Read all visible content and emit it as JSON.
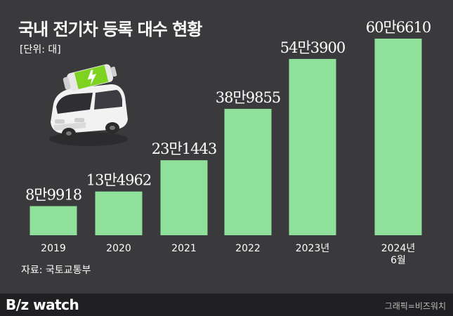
{
  "header": {
    "title": "국내 전기차 등록 대수 현황",
    "unit": "[단위: 대]"
  },
  "chart_data": {
    "type": "bar",
    "title": "국내 전기차 등록 대수 현황",
    "unit": "[단위: 대]",
    "categories": [
      "2019",
      "2020",
      "2021",
      "2022",
      "2023년",
      "2024년 6월"
    ],
    "values": [
      89918,
      134962,
      231443,
      389855,
      543900,
      606610
    ],
    "value_labels": [
      "8만9918",
      "13만4962",
      "23만1443",
      "38만9855",
      "54만3900",
      "60만6610"
    ],
    "bar_color": "#8ee09a",
    "grid": false
  },
  "source": "자료: 국토교통부",
  "footer": {
    "brand": "B/z watch",
    "credit": "그래픽=비즈워치"
  },
  "colors": {
    "background": "#3a3a3c",
    "footer": "#202022",
    "bar": "#8ee09a",
    "battery": "#7ed321"
  },
  "illustration": {
    "icon": "electric-car-battery-icon"
  }
}
